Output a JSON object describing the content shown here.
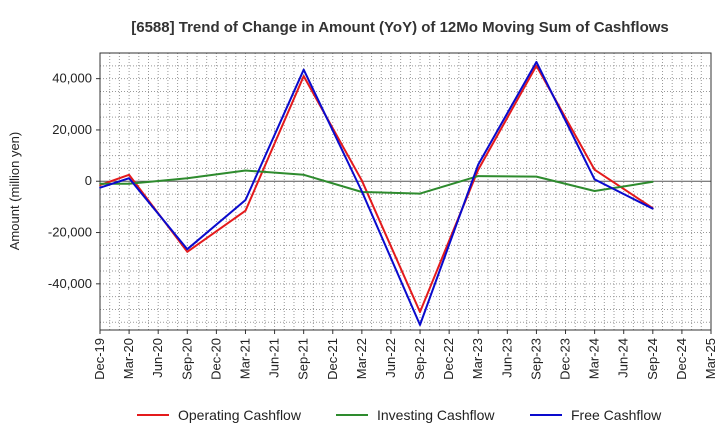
{
  "chart_data": {
    "type": "line",
    "title": "[6588]  Trend of Change in Amount (YoY) of 12Mo Moving Sum of Cashflows",
    "xlabel": "",
    "ylabel": "Amount (million yen)",
    "categories": [
      "Dec-19",
      "Mar-20",
      "Jun-20",
      "Sep-20",
      "Dec-20",
      "Mar-21",
      "Jun-21",
      "Sep-21",
      "Dec-21",
      "Mar-22",
      "Jun-22",
      "Sep-22",
      "Dec-22",
      "Mar-23",
      "Jun-23",
      "Sep-23",
      "Dec-23",
      "Mar-24",
      "Jun-24",
      "Sep-24",
      "Dec-24",
      "Mar-25"
    ],
    "ylim": [
      -58000,
      50000
    ],
    "yticks": [
      40000,
      20000,
      0,
      -20000,
      -40000
    ],
    "ytick_labels": [
      "40,000",
      "20,000",
      "0",
      "-20,000",
      "-40,000"
    ],
    "grid": true,
    "legend_position": "bottom",
    "series": [
      {
        "name": "Operating Cashflow",
        "color": "#e41a1c",
        "values": [
          -1500,
          2500,
          null,
          -27500,
          null,
          -11500,
          null,
          41000,
          null,
          200,
          null,
          -51000,
          null,
          4500,
          null,
          45000,
          null,
          4500,
          null,
          -10500,
          null,
          null
        ]
      },
      {
        "name": "Investing Cashflow",
        "color": "#2e8b2e",
        "values": [
          -1000,
          -1000,
          null,
          1200,
          null,
          4200,
          null,
          2500,
          null,
          -4200,
          null,
          -4800,
          null,
          2000,
          null,
          1800,
          null,
          -3800,
          null,
          -200,
          null,
          null
        ]
      },
      {
        "name": "Free Cashflow",
        "color": "#0a0acd",
        "values": [
          -2500,
          1200,
          null,
          -26500,
          null,
          -7300,
          null,
          43500,
          null,
          -4000,
          null,
          -56000,
          null,
          6500,
          null,
          46500,
          null,
          700,
          null,
          -10700,
          null,
          null
        ]
      }
    ]
  }
}
